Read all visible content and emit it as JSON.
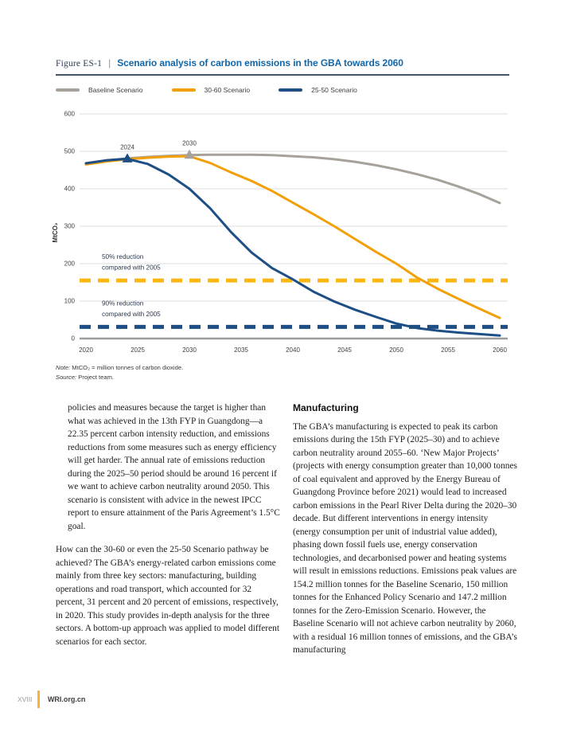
{
  "figure": {
    "label": "Figure ES-1",
    "separator": "|",
    "title": "Scenario analysis of carbon emissions in the GBA towards 2060",
    "note_label": "Note:",
    "note_text": " MtCO₂ = million tonnes of carbon dioxide.",
    "source_label": "Source:",
    "source_text": " Project team."
  },
  "chart_data": {
    "type": "line",
    "title": "Scenario analysis of carbon emissions in the GBA towards 2060",
    "xlabel": "",
    "ylabel": "MtCO₂",
    "ylim": [
      0,
      600
    ],
    "yticks": [
      0,
      100,
      200,
      300,
      400,
      500,
      600
    ],
    "xticks": [
      2020,
      2025,
      2030,
      2035,
      2040,
      2045,
      2050,
      2055,
      2060
    ],
    "x_start": 2020,
    "x_end": 2060,
    "grid": "horizontal",
    "legend_position": "top-left",
    "x": [
      2020,
      2022,
      2024,
      2026,
      2028,
      2030,
      2032,
      2034,
      2036,
      2038,
      2040,
      2042,
      2044,
      2046,
      2048,
      2050,
      2052,
      2054,
      2056,
      2058,
      2060
    ],
    "series": [
      {
        "name": "Baseline Scenario",
        "color": "#A6A29A",
        "values": [
          468,
          476,
          481,
          485,
          488,
          490,
          491,
          491,
          491,
          490,
          487,
          484,
          479,
          472,
          463,
          452,
          439,
          424,
          406,
          386,
          362
        ]
      },
      {
        "name": "30-60 Scenario",
        "color": "#F2A007",
        "values": [
          465,
          473,
          479,
          483,
          486,
          487,
          469,
          444,
          421,
          394,
          363,
          332,
          300,
          266,
          232,
          200,
          163,
          133,
          106,
          80,
          55
        ]
      },
      {
        "name": "25-50 Scenario",
        "color": "#1D4F85",
        "values": [
          468,
          476,
          480,
          466,
          438,
          400,
          348,
          285,
          230,
          188,
          158,
          125,
          99,
          77,
          58,
          40,
          28,
          21,
          16,
          12,
          8
        ]
      }
    ],
    "reference_lines": [
      {
        "value": 155,
        "color": "#FDB714",
        "label_line1": "50% reduction",
        "label_line2": "compared with 2005"
      },
      {
        "value": 31,
        "color": "#1D4F85",
        "label_line1": "90% reduction",
        "label_line2": "compared with 2005"
      }
    ],
    "annotations": [
      {
        "year": 2024,
        "value": 480,
        "label": "2024",
        "marker": "triangle-up",
        "color": "#1D4F85"
      },
      {
        "year": 2030,
        "value": 490,
        "label": "2030",
        "marker": "triangle-up",
        "color": "#A6A29A"
      }
    ]
  },
  "body": {
    "left_column": {
      "paragraph_1": "policies and measures because the target is higher than what was achieved in the 13th FYP in Guangdong—a 22.35 percent carbon intensity reduction, and emissions reductions from some measures such as energy efficiency will get harder. The annual rate of emissions reduction during the 2025–50 period should be around 16 percent if we want to achieve carbon neutrality around 2050. This scenario is consistent with advice in the newest IPCC report to ensure attainment of the Paris Agreement’s 1.5°C goal.",
      "paragraph_2": "How can the 30-60 or even the 25-50 Scenario pathway be achieved? The GBA’s energy-related carbon emissions come mainly from three key sectors: manufacturing, building operations and road transport, which accounted for 32 percent, 31 percent and 20 percent of emissions, respectively, in 2020. This study provides in-depth analysis for the three sectors. A bottom-up approach was applied to model different scenarios for each sector."
    },
    "right_column": {
      "heading": "Manufacturing",
      "paragraph_1": "The GBA’s manufacturing is expected to peak its carbon emissions during the 15th FYP (2025–30) and to achieve carbon neutrality around 2055–60. ‘New Major Projects’ (projects with energy consumption greater than 10,000 tonnes of coal equivalent and approved by the Energy Bureau of Guangdong Province before 2021) would lead to increased carbon emissions in the Pearl River Delta during the 2020–30 decade. But different interventions in energy intensity (energy consumption per unit of industrial value added), phasing down fossil fuels use, energy conservation technologies, and decarbonised power and heating systems will result in emissions reductions. Emissions peak values are 154.2 million tonnes for the Baseline Scenario, 150 million tonnes for the Enhanced Policy Scenario and 147.2 million tonnes for the Zero-Emission Scenario. However, the Baseline Scenario will not achieve carbon neutrality by 2060, with a residual 16 million tonnes of emissions, and the GBA’s manufacturing"
    }
  },
  "footer": {
    "page_number": "XVIII",
    "site": "WRI.org.cn"
  }
}
